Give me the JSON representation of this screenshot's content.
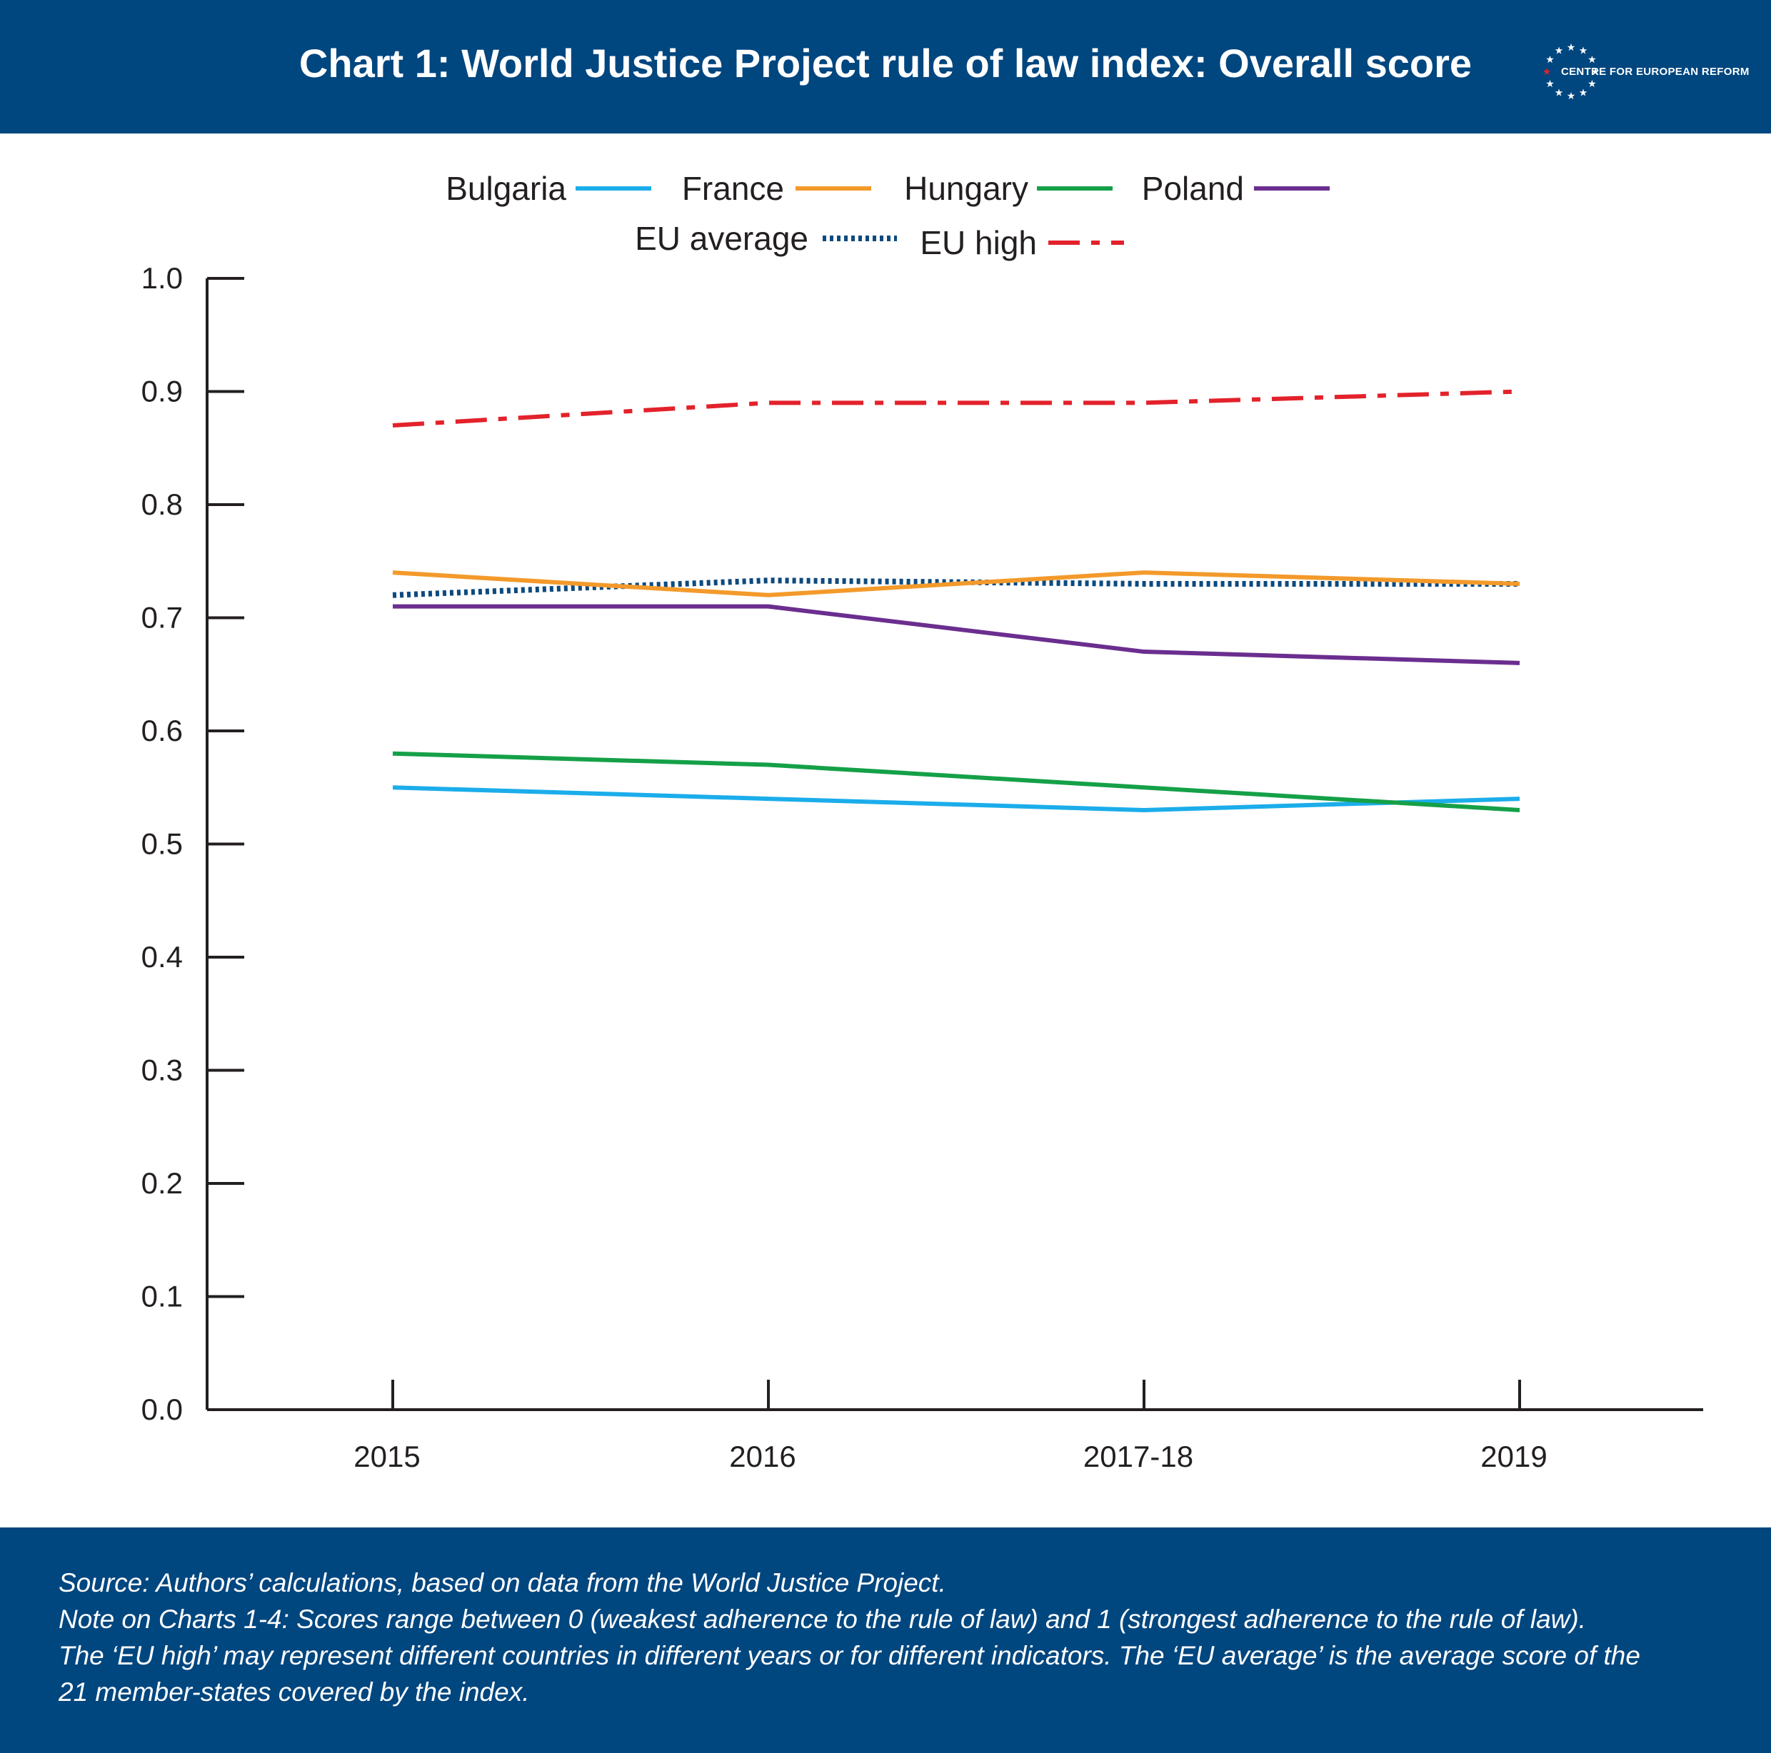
{
  "header": {
    "title": "Chart 1: World Justice Project rule of law index: Overall score",
    "logo_text": "CENTRE FOR EUROPEAN REFORM"
  },
  "footer": {
    "source": "Source: Authors’ calculations, based on data from the World Justice Project.",
    "note_line1": "Note on Charts 1-4: Scores range between 0 (weakest adherence to the rule of law) and 1 (strongest adherence to the rule of law).",
    "note_line2": "The ‘EU high’ may represent different countries in different years or for different indicators. The ‘EU average’ is the average score of the",
    "note_line3": "21 member-states covered by the index."
  },
  "colors": {
    "brand": "#00467f",
    "bulgaria": "#1badea",
    "france": "#f39a2b",
    "hungary": "#15a048",
    "poland": "#6b2e8f",
    "eu_average": "#0d4a7e",
    "eu_high": "#e3222b"
  },
  "chart_data": {
    "type": "line",
    "title": "Chart 1: World Justice Project rule of law index: Overall score",
    "xlabel": "",
    "ylabel": "",
    "categories": [
      "2015",
      "2016",
      "2017-18",
      "2019"
    ],
    "ylim": [
      0.0,
      1.0
    ],
    "yticks": [
      "0.0",
      "0.1",
      "0.2",
      "0.3",
      "0.4",
      "0.5",
      "0.6",
      "0.7",
      "0.8",
      "0.9",
      "1.0"
    ],
    "grid": false,
    "legend_position": "top-center",
    "series": [
      {
        "name": "Bulgaria",
        "values": [
          0.55,
          0.54,
          0.53,
          0.54
        ],
        "style": "solid",
        "color": "#1badea"
      },
      {
        "name": "France",
        "values": [
          0.74,
          0.72,
          0.74,
          0.73
        ],
        "style": "solid",
        "color": "#f39a2b"
      },
      {
        "name": "Hungary",
        "values": [
          0.58,
          0.57,
          0.55,
          0.53
        ],
        "style": "solid",
        "color": "#15a048"
      },
      {
        "name": "Poland",
        "values": [
          0.71,
          0.71,
          0.67,
          0.66
        ],
        "style": "solid",
        "color": "#6b2e8f"
      },
      {
        "name": "EU average",
        "values": [
          0.72,
          0.733,
          0.73,
          0.73
        ],
        "style": "dotted",
        "color": "#0d4a7e"
      },
      {
        "name": "EU high",
        "values": [
          0.87,
          0.89,
          0.89,
          0.9
        ],
        "style": "dashdot",
        "color": "#e3222b"
      }
    ]
  }
}
